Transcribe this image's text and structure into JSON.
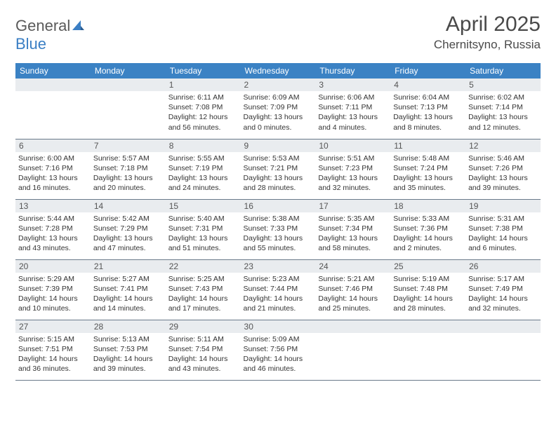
{
  "brand": {
    "name_a": "General",
    "name_b": "Blue"
  },
  "title": "April 2025",
  "location": "Chernitsyno, Russia",
  "colors": {
    "header_bg": "#3b82c4",
    "header_fg": "#ffffff",
    "daynum_bg": "#e9ecef",
    "daynum_fg": "#555555",
    "cell_border": "#6a7a8a",
    "text": "#333333",
    "background": "#ffffff",
    "logo_gray": "#5a5a5a",
    "logo_blue": "#3b7fc4"
  },
  "day_labels": [
    "Sunday",
    "Monday",
    "Tuesday",
    "Wednesday",
    "Thursday",
    "Friday",
    "Saturday"
  ],
  "weeks": [
    [
      null,
      null,
      {
        "n": "1",
        "sr": "Sunrise: 6:11 AM",
        "ss": "Sunset: 7:08 PM",
        "d1": "Daylight: 12 hours",
        "d2": "and 56 minutes."
      },
      {
        "n": "2",
        "sr": "Sunrise: 6:09 AM",
        "ss": "Sunset: 7:09 PM",
        "d1": "Daylight: 13 hours",
        "d2": "and 0 minutes."
      },
      {
        "n": "3",
        "sr": "Sunrise: 6:06 AM",
        "ss": "Sunset: 7:11 PM",
        "d1": "Daylight: 13 hours",
        "d2": "and 4 minutes."
      },
      {
        "n": "4",
        "sr": "Sunrise: 6:04 AM",
        "ss": "Sunset: 7:13 PM",
        "d1": "Daylight: 13 hours",
        "d2": "and 8 minutes."
      },
      {
        "n": "5",
        "sr": "Sunrise: 6:02 AM",
        "ss": "Sunset: 7:14 PM",
        "d1": "Daylight: 13 hours",
        "d2": "and 12 minutes."
      }
    ],
    [
      {
        "n": "6",
        "sr": "Sunrise: 6:00 AM",
        "ss": "Sunset: 7:16 PM",
        "d1": "Daylight: 13 hours",
        "d2": "and 16 minutes."
      },
      {
        "n": "7",
        "sr": "Sunrise: 5:57 AM",
        "ss": "Sunset: 7:18 PM",
        "d1": "Daylight: 13 hours",
        "d2": "and 20 minutes."
      },
      {
        "n": "8",
        "sr": "Sunrise: 5:55 AM",
        "ss": "Sunset: 7:19 PM",
        "d1": "Daylight: 13 hours",
        "d2": "and 24 minutes."
      },
      {
        "n": "9",
        "sr": "Sunrise: 5:53 AM",
        "ss": "Sunset: 7:21 PM",
        "d1": "Daylight: 13 hours",
        "d2": "and 28 minutes."
      },
      {
        "n": "10",
        "sr": "Sunrise: 5:51 AM",
        "ss": "Sunset: 7:23 PM",
        "d1": "Daylight: 13 hours",
        "d2": "and 32 minutes."
      },
      {
        "n": "11",
        "sr": "Sunrise: 5:48 AM",
        "ss": "Sunset: 7:24 PM",
        "d1": "Daylight: 13 hours",
        "d2": "and 35 minutes."
      },
      {
        "n": "12",
        "sr": "Sunrise: 5:46 AM",
        "ss": "Sunset: 7:26 PM",
        "d1": "Daylight: 13 hours",
        "d2": "and 39 minutes."
      }
    ],
    [
      {
        "n": "13",
        "sr": "Sunrise: 5:44 AM",
        "ss": "Sunset: 7:28 PM",
        "d1": "Daylight: 13 hours",
        "d2": "and 43 minutes."
      },
      {
        "n": "14",
        "sr": "Sunrise: 5:42 AM",
        "ss": "Sunset: 7:29 PM",
        "d1": "Daylight: 13 hours",
        "d2": "and 47 minutes."
      },
      {
        "n": "15",
        "sr": "Sunrise: 5:40 AM",
        "ss": "Sunset: 7:31 PM",
        "d1": "Daylight: 13 hours",
        "d2": "and 51 minutes."
      },
      {
        "n": "16",
        "sr": "Sunrise: 5:38 AM",
        "ss": "Sunset: 7:33 PM",
        "d1": "Daylight: 13 hours",
        "d2": "and 55 minutes."
      },
      {
        "n": "17",
        "sr": "Sunrise: 5:35 AM",
        "ss": "Sunset: 7:34 PM",
        "d1": "Daylight: 13 hours",
        "d2": "and 58 minutes."
      },
      {
        "n": "18",
        "sr": "Sunrise: 5:33 AM",
        "ss": "Sunset: 7:36 PM",
        "d1": "Daylight: 14 hours",
        "d2": "and 2 minutes."
      },
      {
        "n": "19",
        "sr": "Sunrise: 5:31 AM",
        "ss": "Sunset: 7:38 PM",
        "d1": "Daylight: 14 hours",
        "d2": "and 6 minutes."
      }
    ],
    [
      {
        "n": "20",
        "sr": "Sunrise: 5:29 AM",
        "ss": "Sunset: 7:39 PM",
        "d1": "Daylight: 14 hours",
        "d2": "and 10 minutes."
      },
      {
        "n": "21",
        "sr": "Sunrise: 5:27 AM",
        "ss": "Sunset: 7:41 PM",
        "d1": "Daylight: 14 hours",
        "d2": "and 14 minutes."
      },
      {
        "n": "22",
        "sr": "Sunrise: 5:25 AM",
        "ss": "Sunset: 7:43 PM",
        "d1": "Daylight: 14 hours",
        "d2": "and 17 minutes."
      },
      {
        "n": "23",
        "sr": "Sunrise: 5:23 AM",
        "ss": "Sunset: 7:44 PM",
        "d1": "Daylight: 14 hours",
        "d2": "and 21 minutes."
      },
      {
        "n": "24",
        "sr": "Sunrise: 5:21 AM",
        "ss": "Sunset: 7:46 PM",
        "d1": "Daylight: 14 hours",
        "d2": "and 25 minutes."
      },
      {
        "n": "25",
        "sr": "Sunrise: 5:19 AM",
        "ss": "Sunset: 7:48 PM",
        "d1": "Daylight: 14 hours",
        "d2": "and 28 minutes."
      },
      {
        "n": "26",
        "sr": "Sunrise: 5:17 AM",
        "ss": "Sunset: 7:49 PM",
        "d1": "Daylight: 14 hours",
        "d2": "and 32 minutes."
      }
    ],
    [
      {
        "n": "27",
        "sr": "Sunrise: 5:15 AM",
        "ss": "Sunset: 7:51 PM",
        "d1": "Daylight: 14 hours",
        "d2": "and 36 minutes."
      },
      {
        "n": "28",
        "sr": "Sunrise: 5:13 AM",
        "ss": "Sunset: 7:53 PM",
        "d1": "Daylight: 14 hours",
        "d2": "and 39 minutes."
      },
      {
        "n": "29",
        "sr": "Sunrise: 5:11 AM",
        "ss": "Sunset: 7:54 PM",
        "d1": "Daylight: 14 hours",
        "d2": "and 43 minutes."
      },
      {
        "n": "30",
        "sr": "Sunrise: 5:09 AM",
        "ss": "Sunset: 7:56 PM",
        "d1": "Daylight: 14 hours",
        "d2": "and 46 minutes."
      },
      null,
      null,
      null
    ]
  ]
}
